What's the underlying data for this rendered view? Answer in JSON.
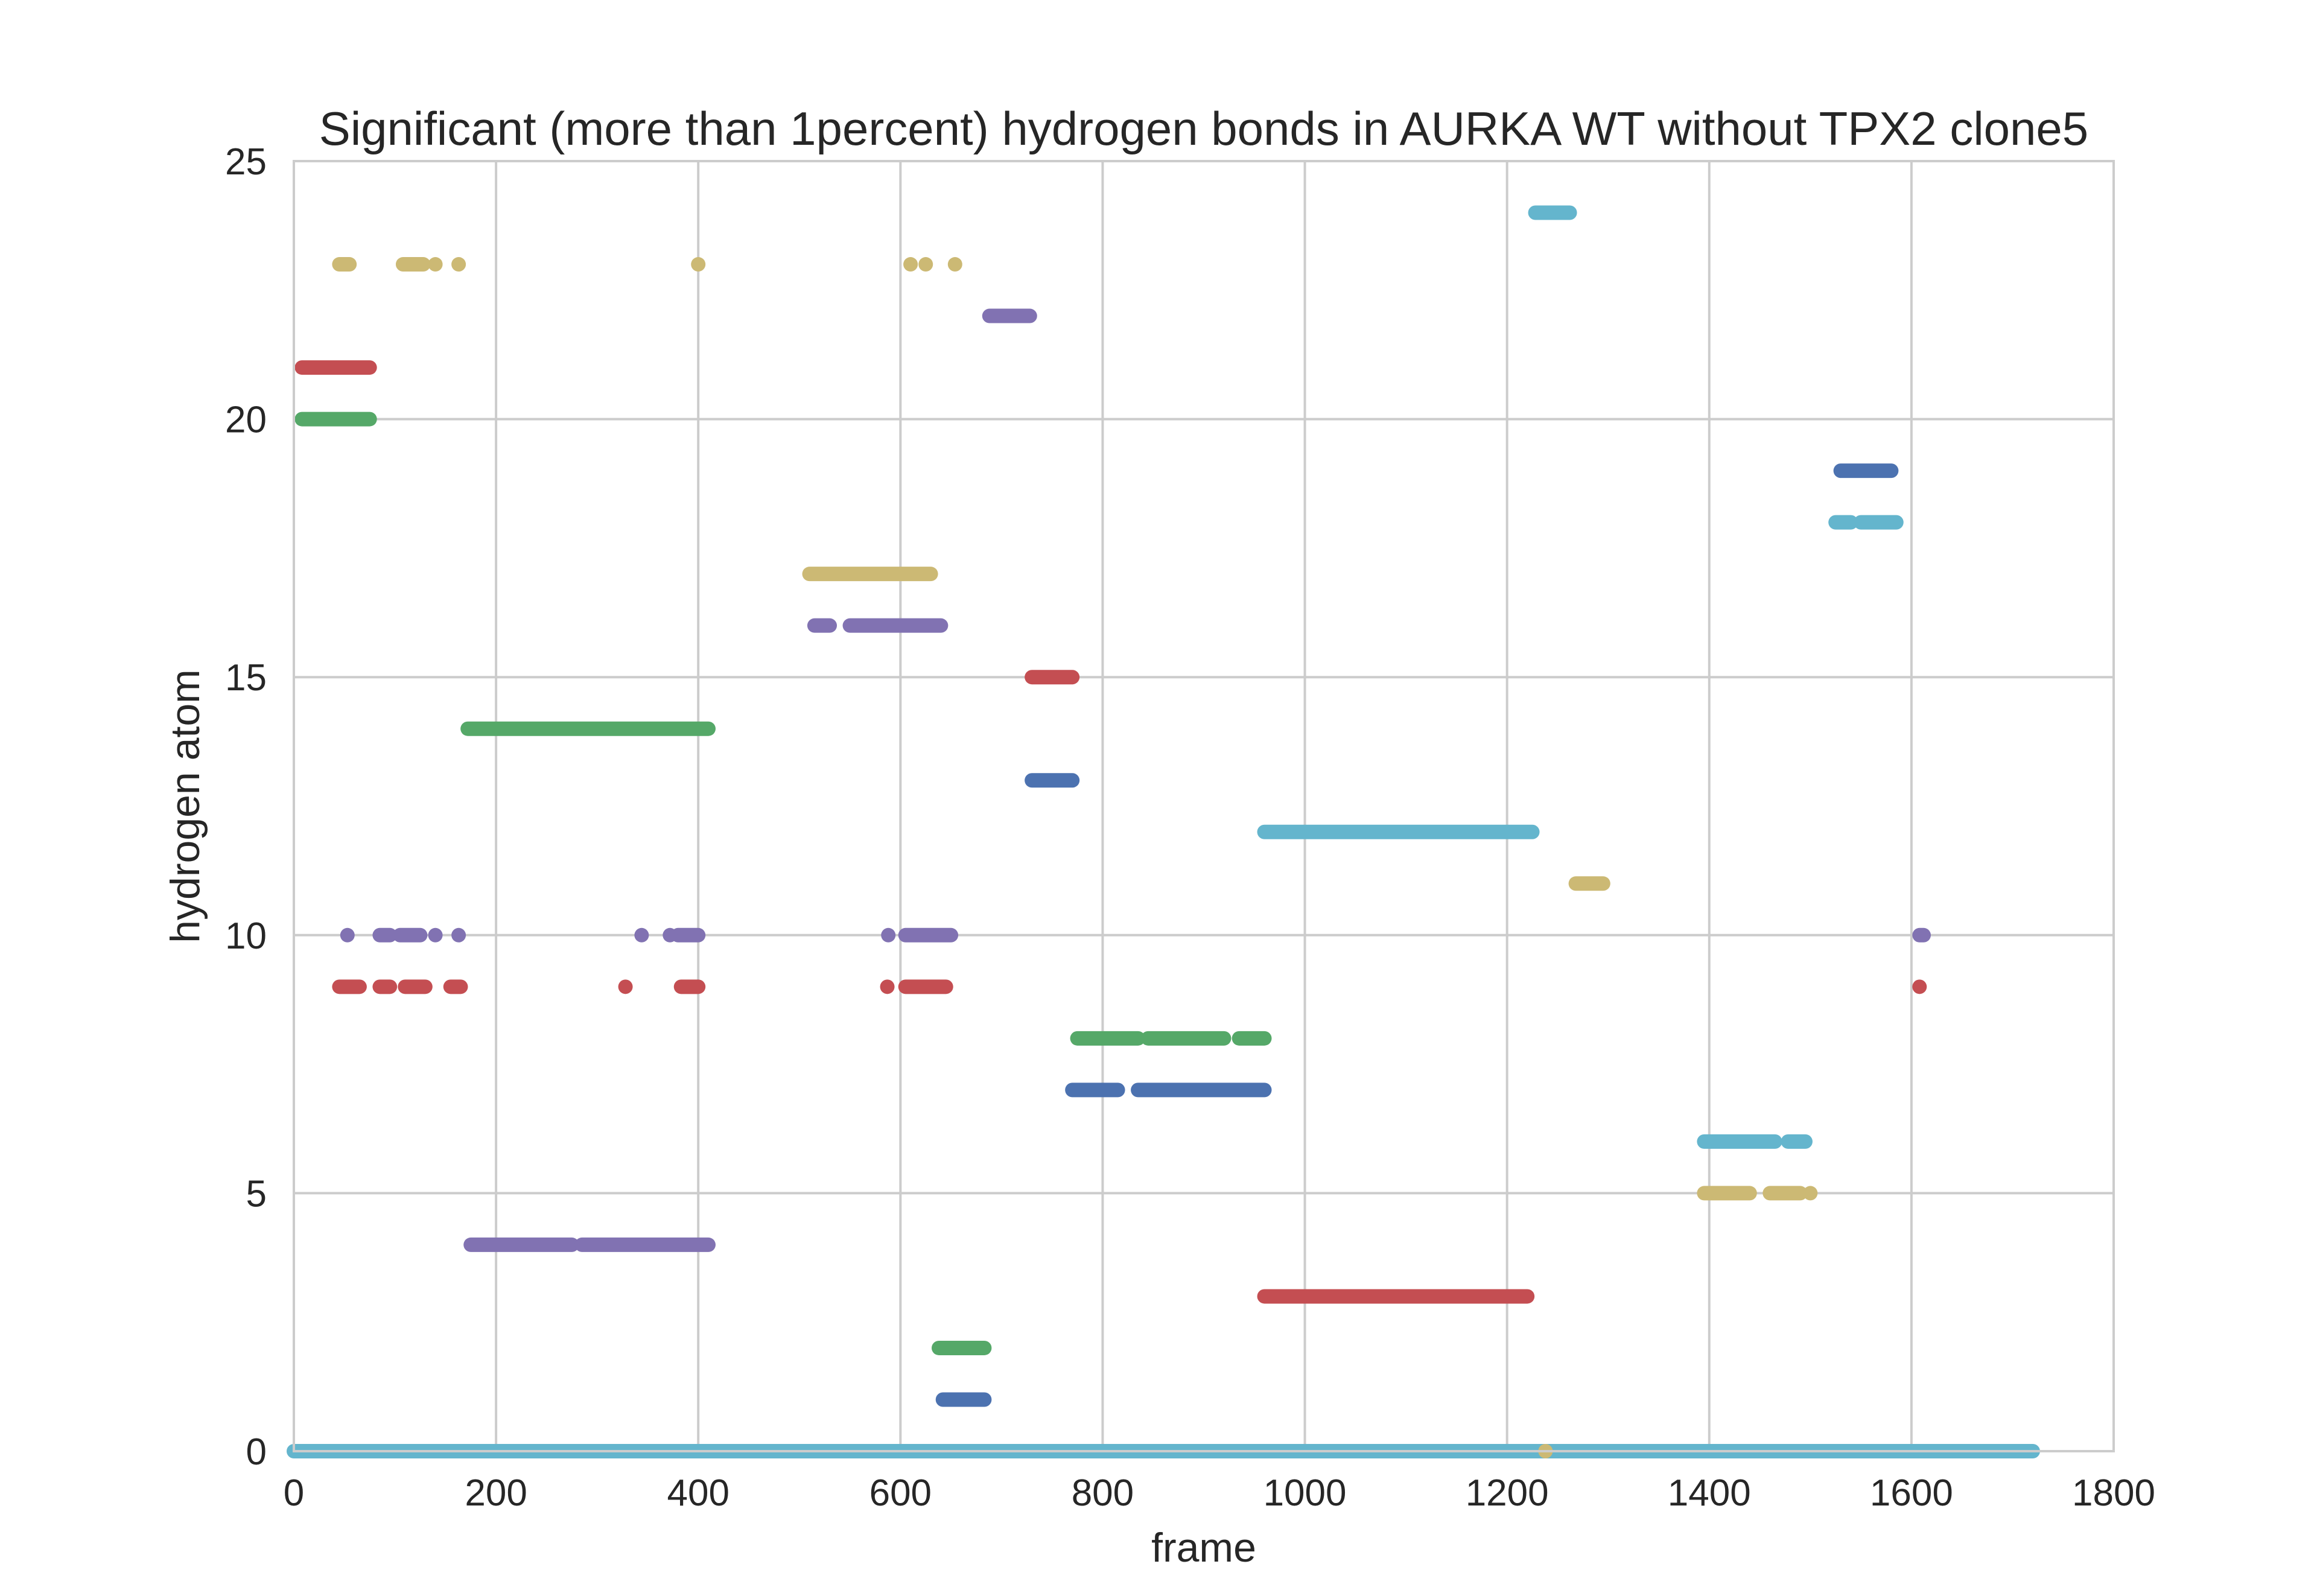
{
  "chart_data": {
    "type": "scatter",
    "title": "Significant (more than 1percent) hydrogen bonds in AURKA WT without TPX2 clone5",
    "xlabel": "frame",
    "ylabel": "hydrogen atom",
    "xlim": [
      0,
      1800
    ],
    "ylim": [
      0,
      25
    ],
    "xticks": [
      0,
      200,
      400,
      600,
      800,
      1000,
      1200,
      1400,
      1600,
      1800
    ],
    "yticks": [
      0,
      5,
      10,
      15,
      20,
      25
    ],
    "grid": true,
    "legend": "none",
    "palette": {
      "blue": "#4c72b0",
      "green": "#55a868",
      "red": "#c44e52",
      "purple": "#8172b2",
      "yellow": "#ccb974",
      "cyan": "#64b5cd"
    },
    "series": [
      {
        "color": "blue",
        "y": 1,
        "runs": [
          [
            642,
            683
          ]
        ]
      },
      {
        "color": "green",
        "y": 2,
        "runs": [
          [
            638,
            683
          ]
        ]
      },
      {
        "color": "red",
        "y": 3,
        "runs": [
          [
            960,
            1220
          ]
        ]
      },
      {
        "color": "purple",
        "y": 4,
        "runs": [
          [
            175,
            275
          ],
          [
            285,
            410
          ]
        ]
      },
      {
        "color": "yellow",
        "y": 5,
        "runs": [
          [
            1395,
            1440
          ],
          [
            1460,
            1490
          ]
        ],
        "points": [
          1500
        ]
      },
      {
        "color": "cyan",
        "y": 6,
        "runs": [
          [
            1395,
            1465
          ],
          [
            1478,
            1495
          ]
        ]
      },
      {
        "color": "blue",
        "y": 7,
        "runs": [
          [
            770,
            815
          ],
          [
            835,
            960
          ]
        ]
      },
      {
        "color": "green",
        "y": 8,
        "runs": [
          [
            775,
            835
          ],
          [
            845,
            920
          ],
          [
            935,
            960
          ]
        ]
      },
      {
        "color": "red",
        "y": 9,
        "runs": [
          [
            45,
            65
          ],
          [
            85,
            95
          ],
          [
            110,
            130
          ],
          [
            155,
            165
          ],
          [
            383,
            400
          ],
          [
            605,
            645
          ]
        ],
        "points": [
          328,
          587,
          1608
        ]
      },
      {
        "color": "purple",
        "y": 10,
        "runs": [
          [
            85,
            95
          ],
          [
            105,
            125
          ],
          [
            380,
            400
          ],
          [
            605,
            650
          ],
          [
            1608,
            1612
          ]
        ],
        "points": [
          53,
          140,
          163,
          344,
          372,
          588
        ]
      },
      {
        "color": "yellow",
        "y": 11,
        "runs": [
          [
            1268,
            1295
          ]
        ]
      },
      {
        "color": "cyan",
        "y": 12,
        "runs": [
          [
            960,
            1225
          ]
        ]
      },
      {
        "color": "blue",
        "y": 13,
        "runs": [
          [
            730,
            770
          ]
        ]
      },
      {
        "color": "green",
        "y": 14,
        "runs": [
          [
            172,
            410
          ]
        ]
      },
      {
        "color": "red",
        "y": 15,
        "runs": [
          [
            730,
            770
          ]
        ]
      },
      {
        "color": "purple",
        "y": 16,
        "runs": [
          [
            515,
            530
          ],
          [
            550,
            640
          ]
        ]
      },
      {
        "color": "yellow",
        "y": 17,
        "runs": [
          [
            510,
            630
          ]
        ]
      },
      {
        "color": "cyan",
        "y": 18,
        "runs": [
          [
            1525,
            1540
          ],
          [
            1550,
            1585
          ]
        ]
      },
      {
        "color": "blue",
        "y": 19,
        "runs": [
          [
            1530,
            1580
          ]
        ]
      },
      {
        "color": "green",
        "y": 20,
        "runs": [
          [
            8,
            75
          ]
        ]
      },
      {
        "color": "red",
        "y": 21,
        "runs": [
          [
            8,
            75
          ]
        ]
      },
      {
        "color": "purple",
        "y": 22,
        "runs": [
          [
            688,
            728
          ]
        ]
      },
      {
        "color": "yellow",
        "y": 23,
        "runs": [
          [
            45,
            55
          ],
          [
            108,
            128
          ]
        ],
        "points": [
          140,
          163,
          400,
          610,
          625,
          654
        ]
      },
      {
        "color": "cyan",
        "y": 24,
        "runs": [
          [
            1228,
            1262
          ]
        ]
      },
      {
        "color": "cyan",
        "y": 0,
        "runs": [
          [
            0,
            1720
          ]
        ]
      }
    ],
    "extra_points": [
      {
        "color": "yellow",
        "x": 1238,
        "y": 0
      }
    ]
  }
}
